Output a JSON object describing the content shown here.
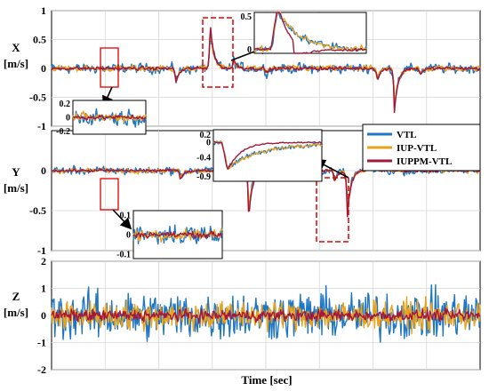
{
  "chart_data": {
    "type": "line",
    "xlabel": "Time [sec]",
    "legend": {
      "placement": "right, between Y panel top and inset",
      "entries": [
        "VTL",
        "IUP-VTL",
        "IUPPM-VTL"
      ]
    },
    "colors": {
      "VTL": "#1f77c4",
      "IUP-VTL": "#e8a21c",
      "IUPPM-VTL": "#a3183a"
    },
    "grid": true,
    "series_names": [
      "VTL",
      "IUP-VTL",
      "IUPPM-VTL"
    ],
    "panels": [
      {
        "id": "X",
        "ylabel_line1": "X",
        "ylabel_line2": "[m/s]",
        "ylim": [
          -1,
          1
        ],
        "yticks": [
          "1",
          "0.5",
          "0",
          "-0.5",
          "-1"
        ],
        "ytick_values": [
          1,
          0.5,
          0,
          -0.5,
          -1
        ],
        "noise_amplitude": {
          "VTL": 0.1,
          "IUP-VTL": 0.06,
          "IUPPM-VTL": 0.035
        },
        "events": [
          {
            "t": 0.29,
            "value": -0.25
          },
          {
            "t": 0.37,
            "value": 0.8
          },
          {
            "t": 0.425,
            "value": 0.15
          },
          {
            "t": 0.5,
            "value": -0.08
          },
          {
            "t": 0.76,
            "value": -0.2
          },
          {
            "t": 0.8,
            "value": -0.75
          },
          {
            "t": 0.86,
            "value": -0.1
          }
        ],
        "insets": [
          {
            "yticks": [
              "0.2",
              "0",
              "-0.2"
            ],
            "ytick_values": [
              0.2,
              0,
              -0.2
            ],
            "kind": "noise"
          },
          {
            "yticks": [
              "0.5",
              "0"
            ],
            "ytick_values": [
              0.5,
              0
            ],
            "kind": "spike"
          }
        ]
      },
      {
        "id": "Y",
        "ylabel_line1": "Y",
        "ylabel_line2": "[m/s]",
        "ylim": [
          -1,
          0.5
        ],
        "yticks": [
          "0",
          "-0.5",
          "-1"
        ],
        "ytick_values": [
          0,
          -0.5,
          -1
        ],
        "noise_amplitude": {
          "VTL": 0.06,
          "IUP-VTL": 0.035,
          "IUPPM-VTL": 0.02
        },
        "events": [
          {
            "t": 0.3,
            "value": -0.1
          },
          {
            "t": 0.46,
            "value": -0.6
          },
          {
            "t": 0.5,
            "value": -0.1
          },
          {
            "t": 0.66,
            "value": -0.15
          },
          {
            "t": 0.69,
            "value": -0.6
          },
          {
            "t": 0.74,
            "value": 0.08
          }
        ],
        "insets": [
          {
            "yticks": [
              "0.1",
              "0",
              "-0.1"
            ],
            "ytick_values": [
              0.1,
              0,
              -0.1
            ],
            "kind": "noise"
          },
          {
            "yticks": [
              "0.2",
              "0",
              "-0.4",
              "-0.9"
            ],
            "ytick_values": [
              0.2,
              0,
              -0.4,
              -0.9
            ],
            "kind": "dip"
          }
        ]
      },
      {
        "id": "Z",
        "ylabel_line1": "Z",
        "ylabel_line2": "[m/s]",
        "ylim": [
          -2,
          2
        ],
        "yticks": [
          "2",
          "1",
          "0",
          "-1",
          "-2"
        ],
        "ytick_values": [
          2,
          1,
          0,
          -1,
          -2
        ],
        "noise_amplitude": {
          "VTL": 0.75,
          "IUP-VTL": 0.45,
          "IUPPM-VTL": 0.18
        },
        "events": [],
        "insets": []
      }
    ]
  }
}
